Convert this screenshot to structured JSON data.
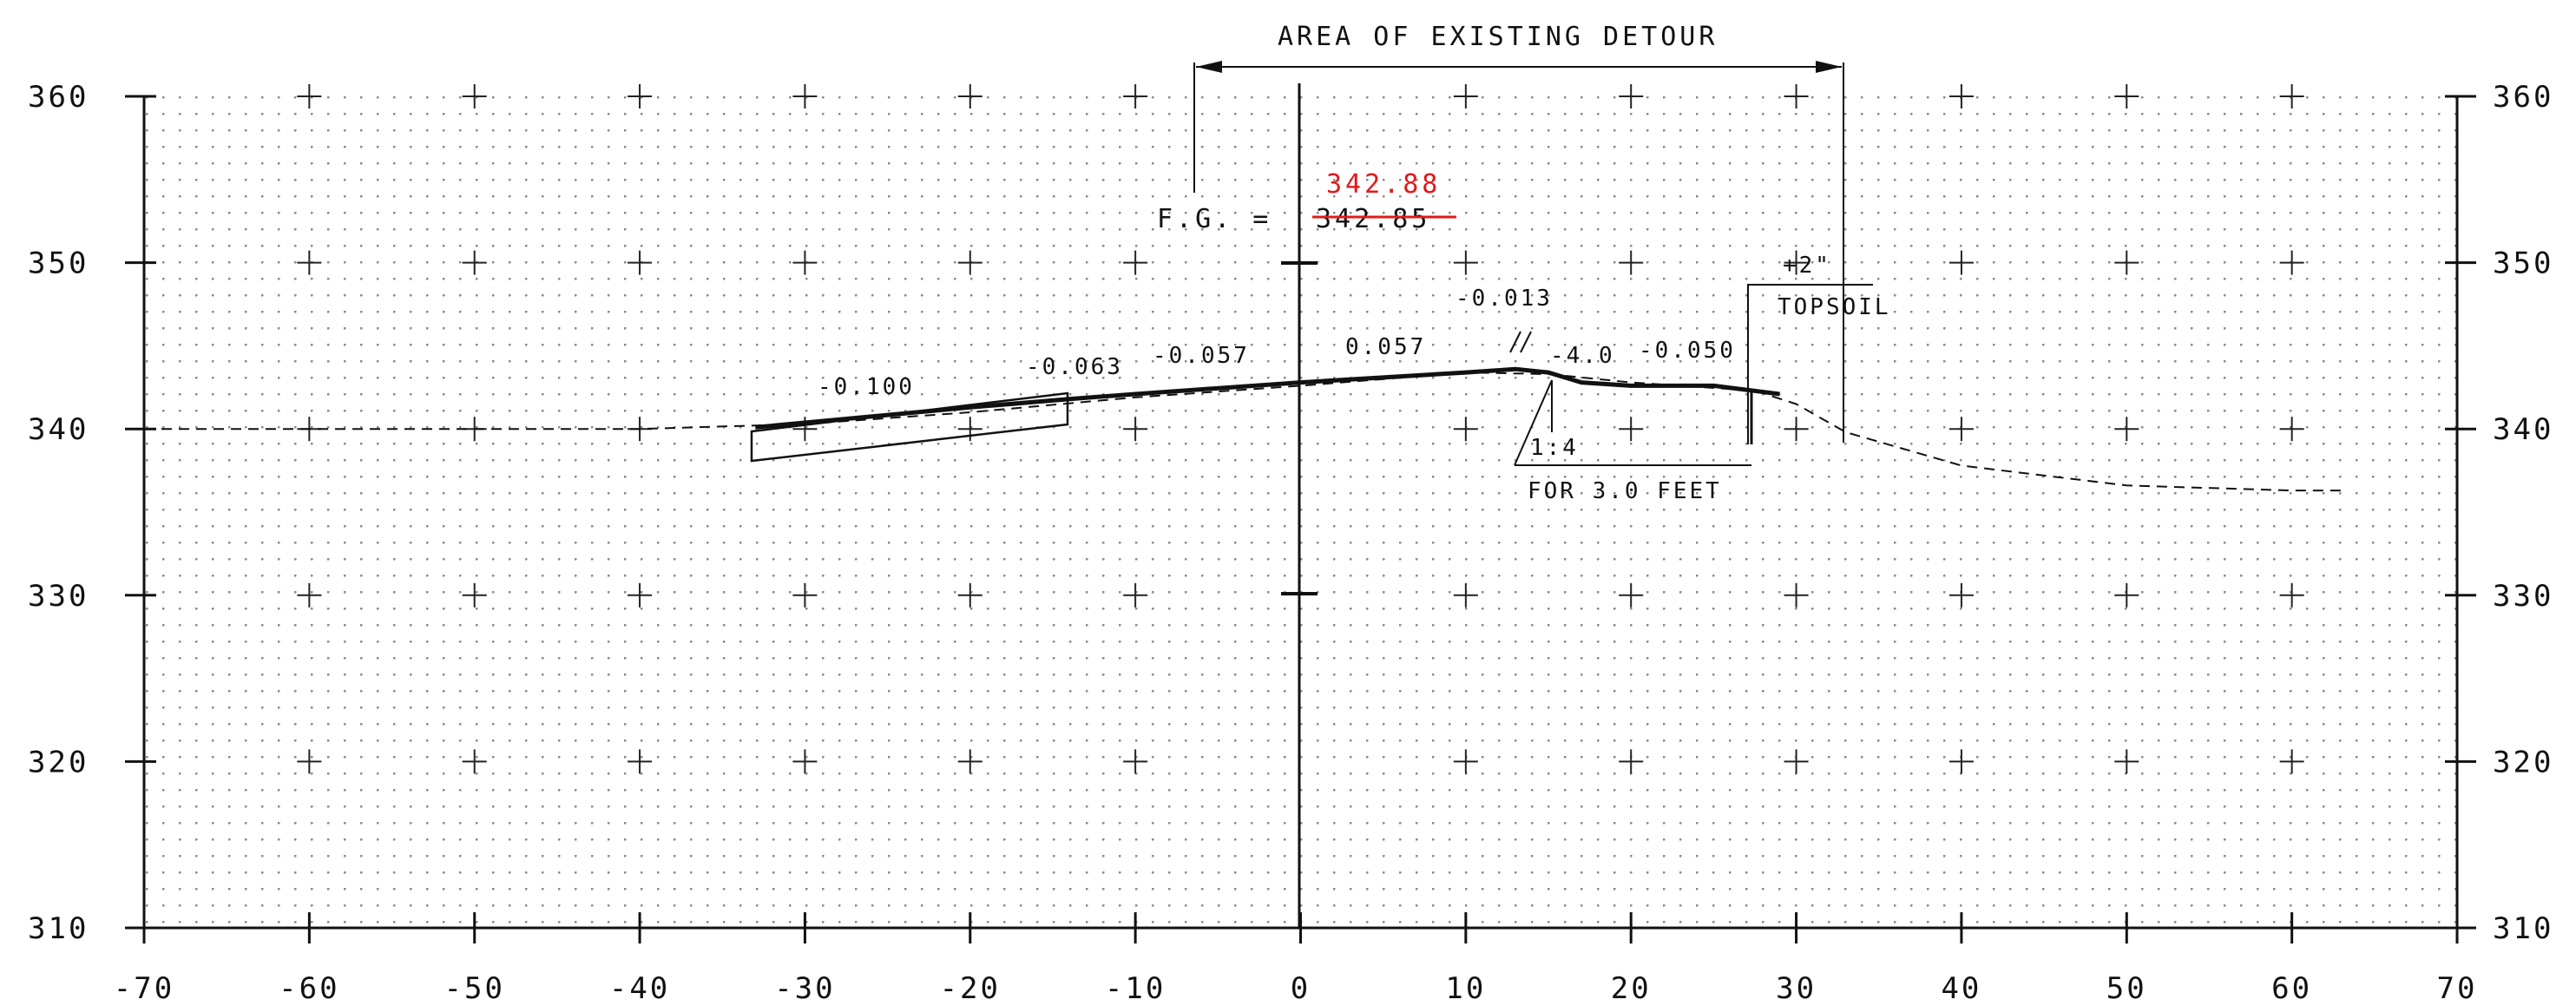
{
  "chart_data": {
    "type": "line",
    "x_ticks": [
      "-70",
      "-60",
      "-50",
      "-40",
      "-30",
      "-20",
      "-10",
      "0",
      "10",
      "20",
      "30",
      "40",
      "50",
      "60",
      "70"
    ],
    "y_ticks": [
      "360",
      "350",
      "340",
      "330",
      "320",
      "310"
    ],
    "xlim": [
      -70,
      70
    ],
    "ylim": [
      310,
      360
    ],
    "grid": true,
    "series": [
      {
        "x": [
          -70,
          -60,
          -50,
          -40,
          -30,
          -20,
          -10,
          0,
          10,
          15,
          20,
          27.5,
          30,
          33,
          40,
          50,
          60,
          63
        ],
        "y": [
          340.0,
          340.0,
          340.0,
          340.0,
          340.3,
          341.0,
          341.9,
          342.6,
          343.4,
          343.3,
          342.8,
          342.3,
          341.5,
          339.8,
          337.8,
          336.6,
          336.3,
          336.3
        ],
        "style": "dashed"
      },
      {
        "x": [
          -33,
          -20,
          -14,
          -10,
          0,
          10,
          13,
          15,
          17,
          20,
          25,
          29
        ],
        "y": [
          340.1,
          341.3,
          341.8,
          342.1,
          342.8,
          343.4,
          343.6,
          343.4,
          342.8,
          342.6,
          342.6,
          342.1
        ],
        "style": "solid"
      }
    ],
    "annotations": {
      "header": "AREA OF EXISTING DETOUR",
      "fg_label": "F.G. =",
      "fg_old": "342.85",
      "fg_new": "342.88",
      "slope_1": "-0.100",
      "slope_2": "-0.063",
      "slope_3": "-0.057",
      "slope_4": "0.057",
      "slope_5": "-0.013",
      "slope_6": "-4.0",
      "slope_7": "-0.050",
      "ratio": "1:4",
      "for_length": "FOR 3.0 FEET",
      "topsoil_depth": "+2\"",
      "topsoil": "TOPSOIL"
    }
  },
  "colors": {
    "ink": "#111111",
    "grid_dot": "#777777",
    "revision_red": "#e0191b"
  }
}
